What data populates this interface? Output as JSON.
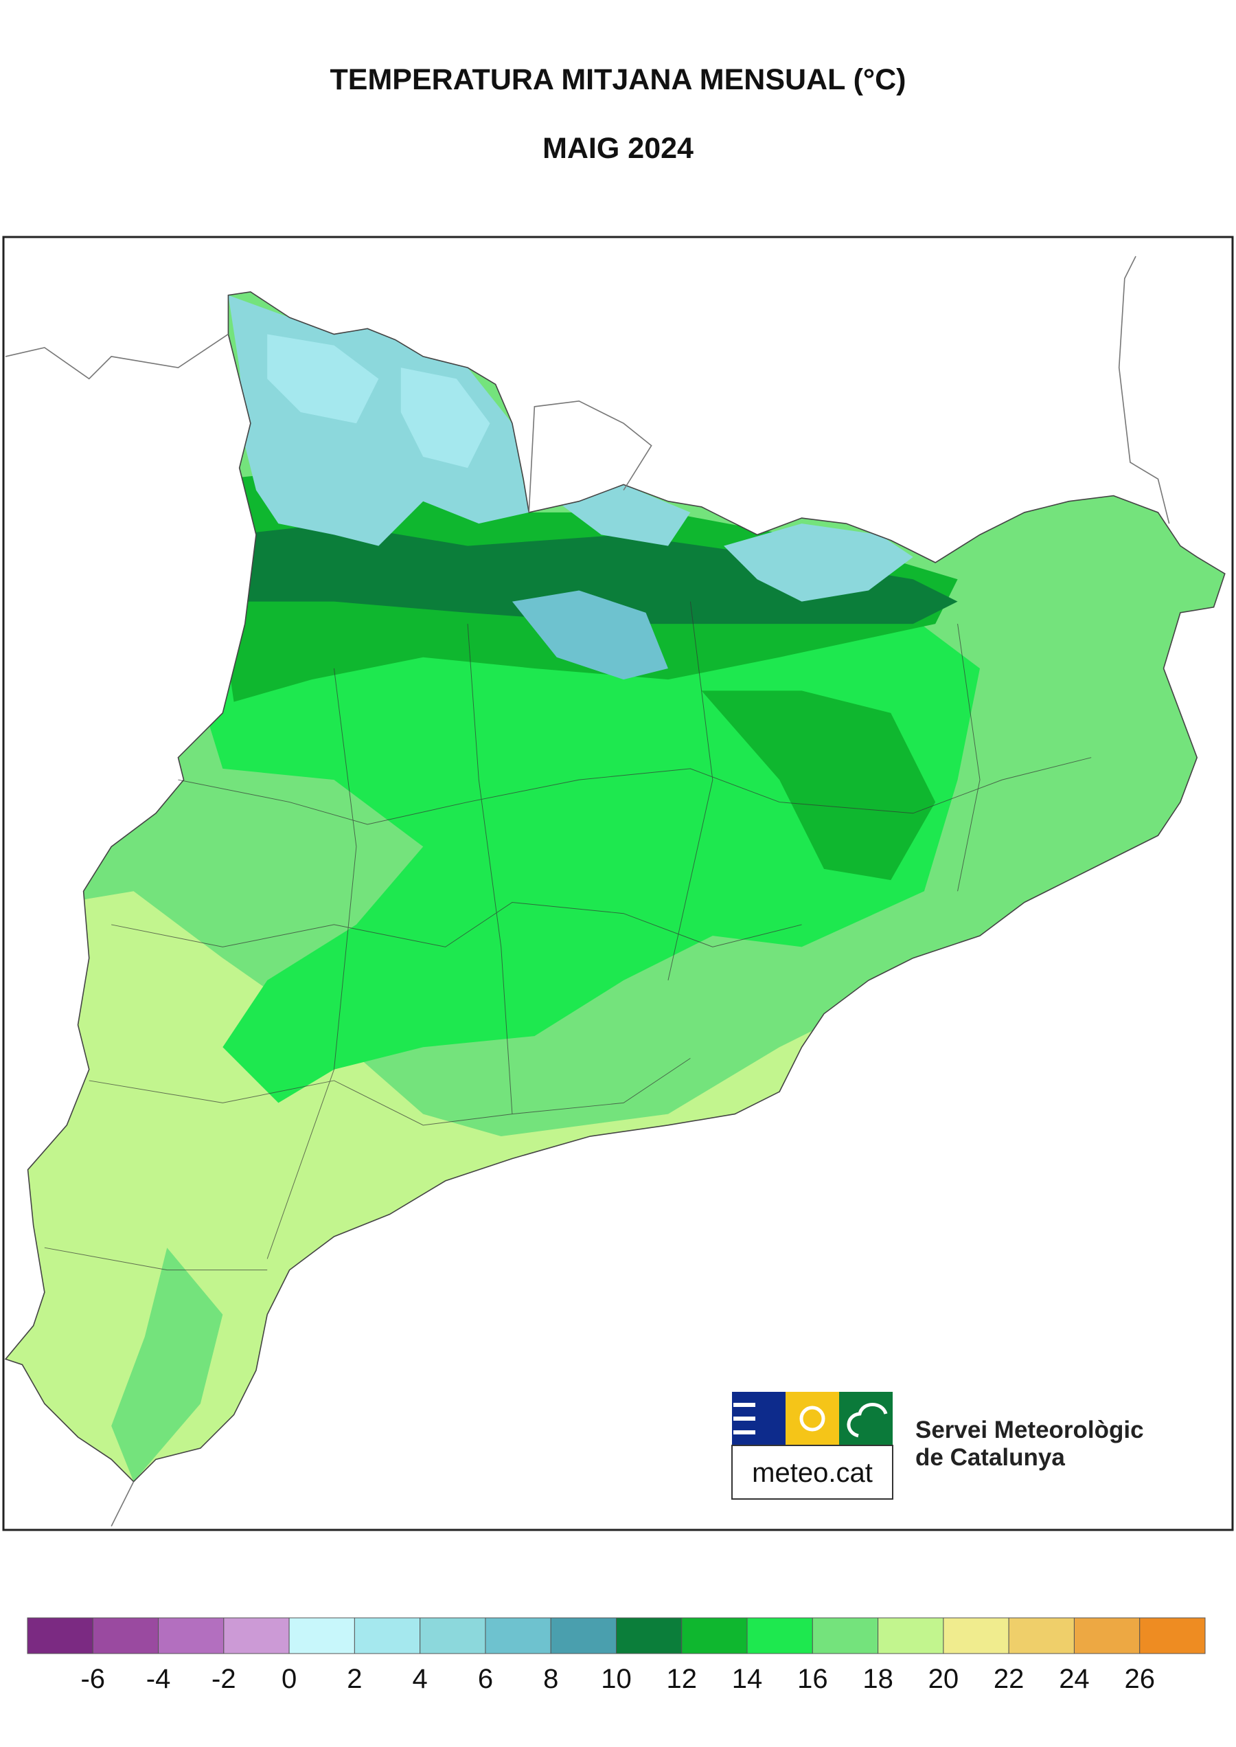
{
  "header": {
    "title": "TEMPERATURA MITJANA MENSUAL (°C)",
    "subtitle": "MAIG 2024"
  },
  "logo": {
    "text": "meteo.cat",
    "org_line1": "Servei Meteorològic",
    "org_line2": "de Catalunya"
  },
  "legend": {
    "colors": [
      "#7b2a82",
      "#9a4aa0",
      "#b36fbf",
      "#cc9ad6",
      "#c8f7fb",
      "#a5e8ee",
      "#8cd8dc",
      "#6ec2cf",
      "#4a9fae",
      "#0b7e3a",
      "#0fb72f",
      "#1ee84f",
      "#74e37c",
      "#c2f58e",
      "#f0ec8e",
      "#efcf6a",
      "#eda843",
      "#ee8c22"
    ],
    "ticks": [
      -6,
      -4,
      -2,
      0,
      2,
      4,
      6,
      8,
      10,
      12,
      14,
      16,
      18,
      20,
      22,
      24,
      26
    ]
  }
}
